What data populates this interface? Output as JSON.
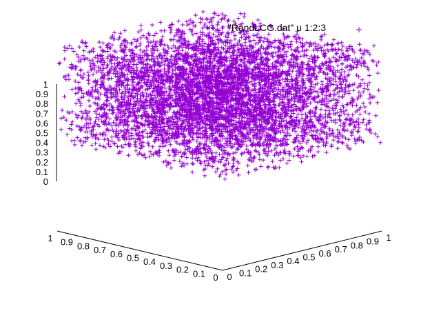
{
  "chart_data": {
    "type": "scatter3d",
    "title": "",
    "legend": {
      "entries": [
        "\"RandLCG.dat\" u 1:2:3"
      ],
      "placement": "top-right"
    },
    "x_axis": {
      "ticks": [
        "0",
        "0.1",
        "0.2",
        "0.3",
        "0.4",
        "0.5",
        "0.6",
        "0.7",
        "0.8",
        "0.9",
        "1"
      ],
      "range": [
        0,
        1
      ]
    },
    "y_axis": {
      "ticks": [
        "0",
        "0.1",
        "0.2",
        "0.3",
        "0.4",
        "0.5",
        "0.6",
        "0.7",
        "0.8",
        "0.9",
        "1"
      ],
      "range": [
        0,
        1
      ]
    },
    "z_axis": {
      "ticks": [
        "0",
        "0.1",
        "0.2",
        "0.3",
        "0.4",
        "0.5",
        "0.6",
        "0.7",
        "0.8",
        "0.9",
        "1"
      ],
      "range": [
        0,
        1
      ]
    },
    "grid": false,
    "series": [
      {
        "name": "\"RandLCG.dat\" u 1:2:3",
        "color": "#9400d3",
        "marker": "plus",
        "distribution": "uniform random points filling the unit cube [0,1]^3"
      }
    ]
  }
}
